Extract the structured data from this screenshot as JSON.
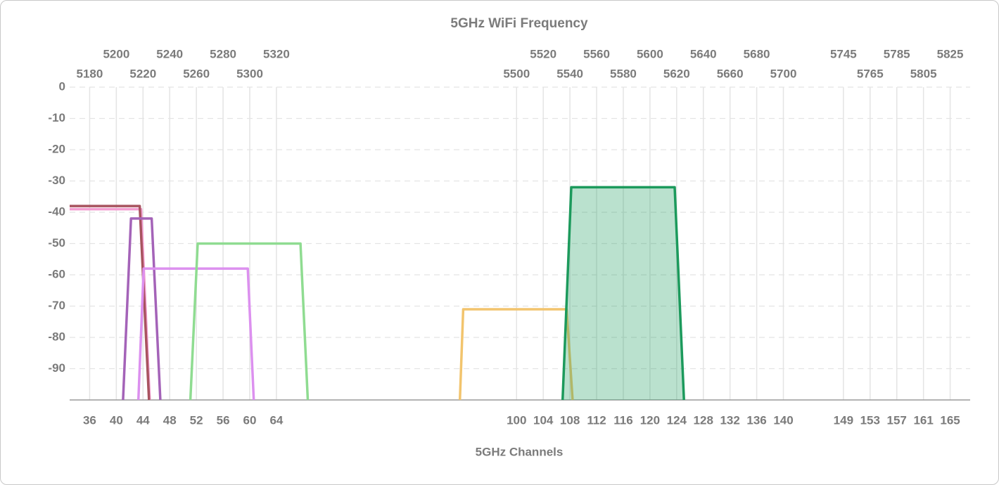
{
  "chart_data": {
    "type": "line",
    "title": "5GHz WiFi Frequency",
    "xlabel": "5GHz Channels",
    "xlim": [
      33,
      168
    ],
    "xticks": [
      36,
      40,
      44,
      48,
      52,
      56,
      60,
      64,
      100,
      104,
      108,
      112,
      116,
      120,
      124,
      128,
      132,
      136,
      140,
      149,
      153,
      157,
      161,
      165
    ],
    "x2lim": [
      5165,
      5840
    ],
    "x2ticks": [
      5180,
      5200,
      5220,
      5240,
      5260,
      5280,
      5300,
      5320,
      5500,
      5520,
      5540,
      5560,
      5580,
      5600,
      5620,
      5640,
      5660,
      5680,
      5700,
      5745,
      5765,
      5785,
      5805,
      5825
    ],
    "ylim": [
      -100,
      0
    ],
    "yticks": [
      0,
      -10,
      -20,
      -30,
      -40,
      -50,
      -60,
      -70,
      -80,
      -90
    ],
    "grid": true,
    "series": [
      {
        "color": "#f29ccf",
        "x": [
          33,
          43.7,
          45.0
        ],
        "values": [
          -39,
          -39,
          -100
        ]
      },
      {
        "color": "#a8535f",
        "x": [
          33,
          43.5,
          44.9
        ],
        "values": [
          -38,
          -38,
          -100
        ]
      },
      {
        "color": "#a463b8",
        "x": [
          41.0,
          42.2,
          45.3,
          46.6
        ],
        "values": [
          -100,
          -42,
          -42,
          -100
        ]
      },
      {
        "color": "#dc90ef",
        "x": [
          43.3,
          44.1,
          59.7,
          60.6
        ],
        "values": [
          -100,
          -58,
          -58,
          -100
        ]
      },
      {
        "color": "#8fdc91",
        "x": [
          51.1,
          52.2,
          67.6,
          68.7
        ],
        "values": [
          -100,
          -50,
          -50,
          -100
        ]
      },
      {
        "color": "#f2c46d",
        "x": [
          91.5,
          92.0,
          107.5,
          108.4
        ],
        "values": [
          -100,
          -71,
          -71,
          -100
        ]
      },
      {
        "color": "#1c9a5c",
        "fill": true,
        "x": [
          106.9,
          108.2,
          123.7,
          125.1
        ],
        "values": [
          -100,
          -32,
          -32,
          -100
        ]
      }
    ]
  }
}
